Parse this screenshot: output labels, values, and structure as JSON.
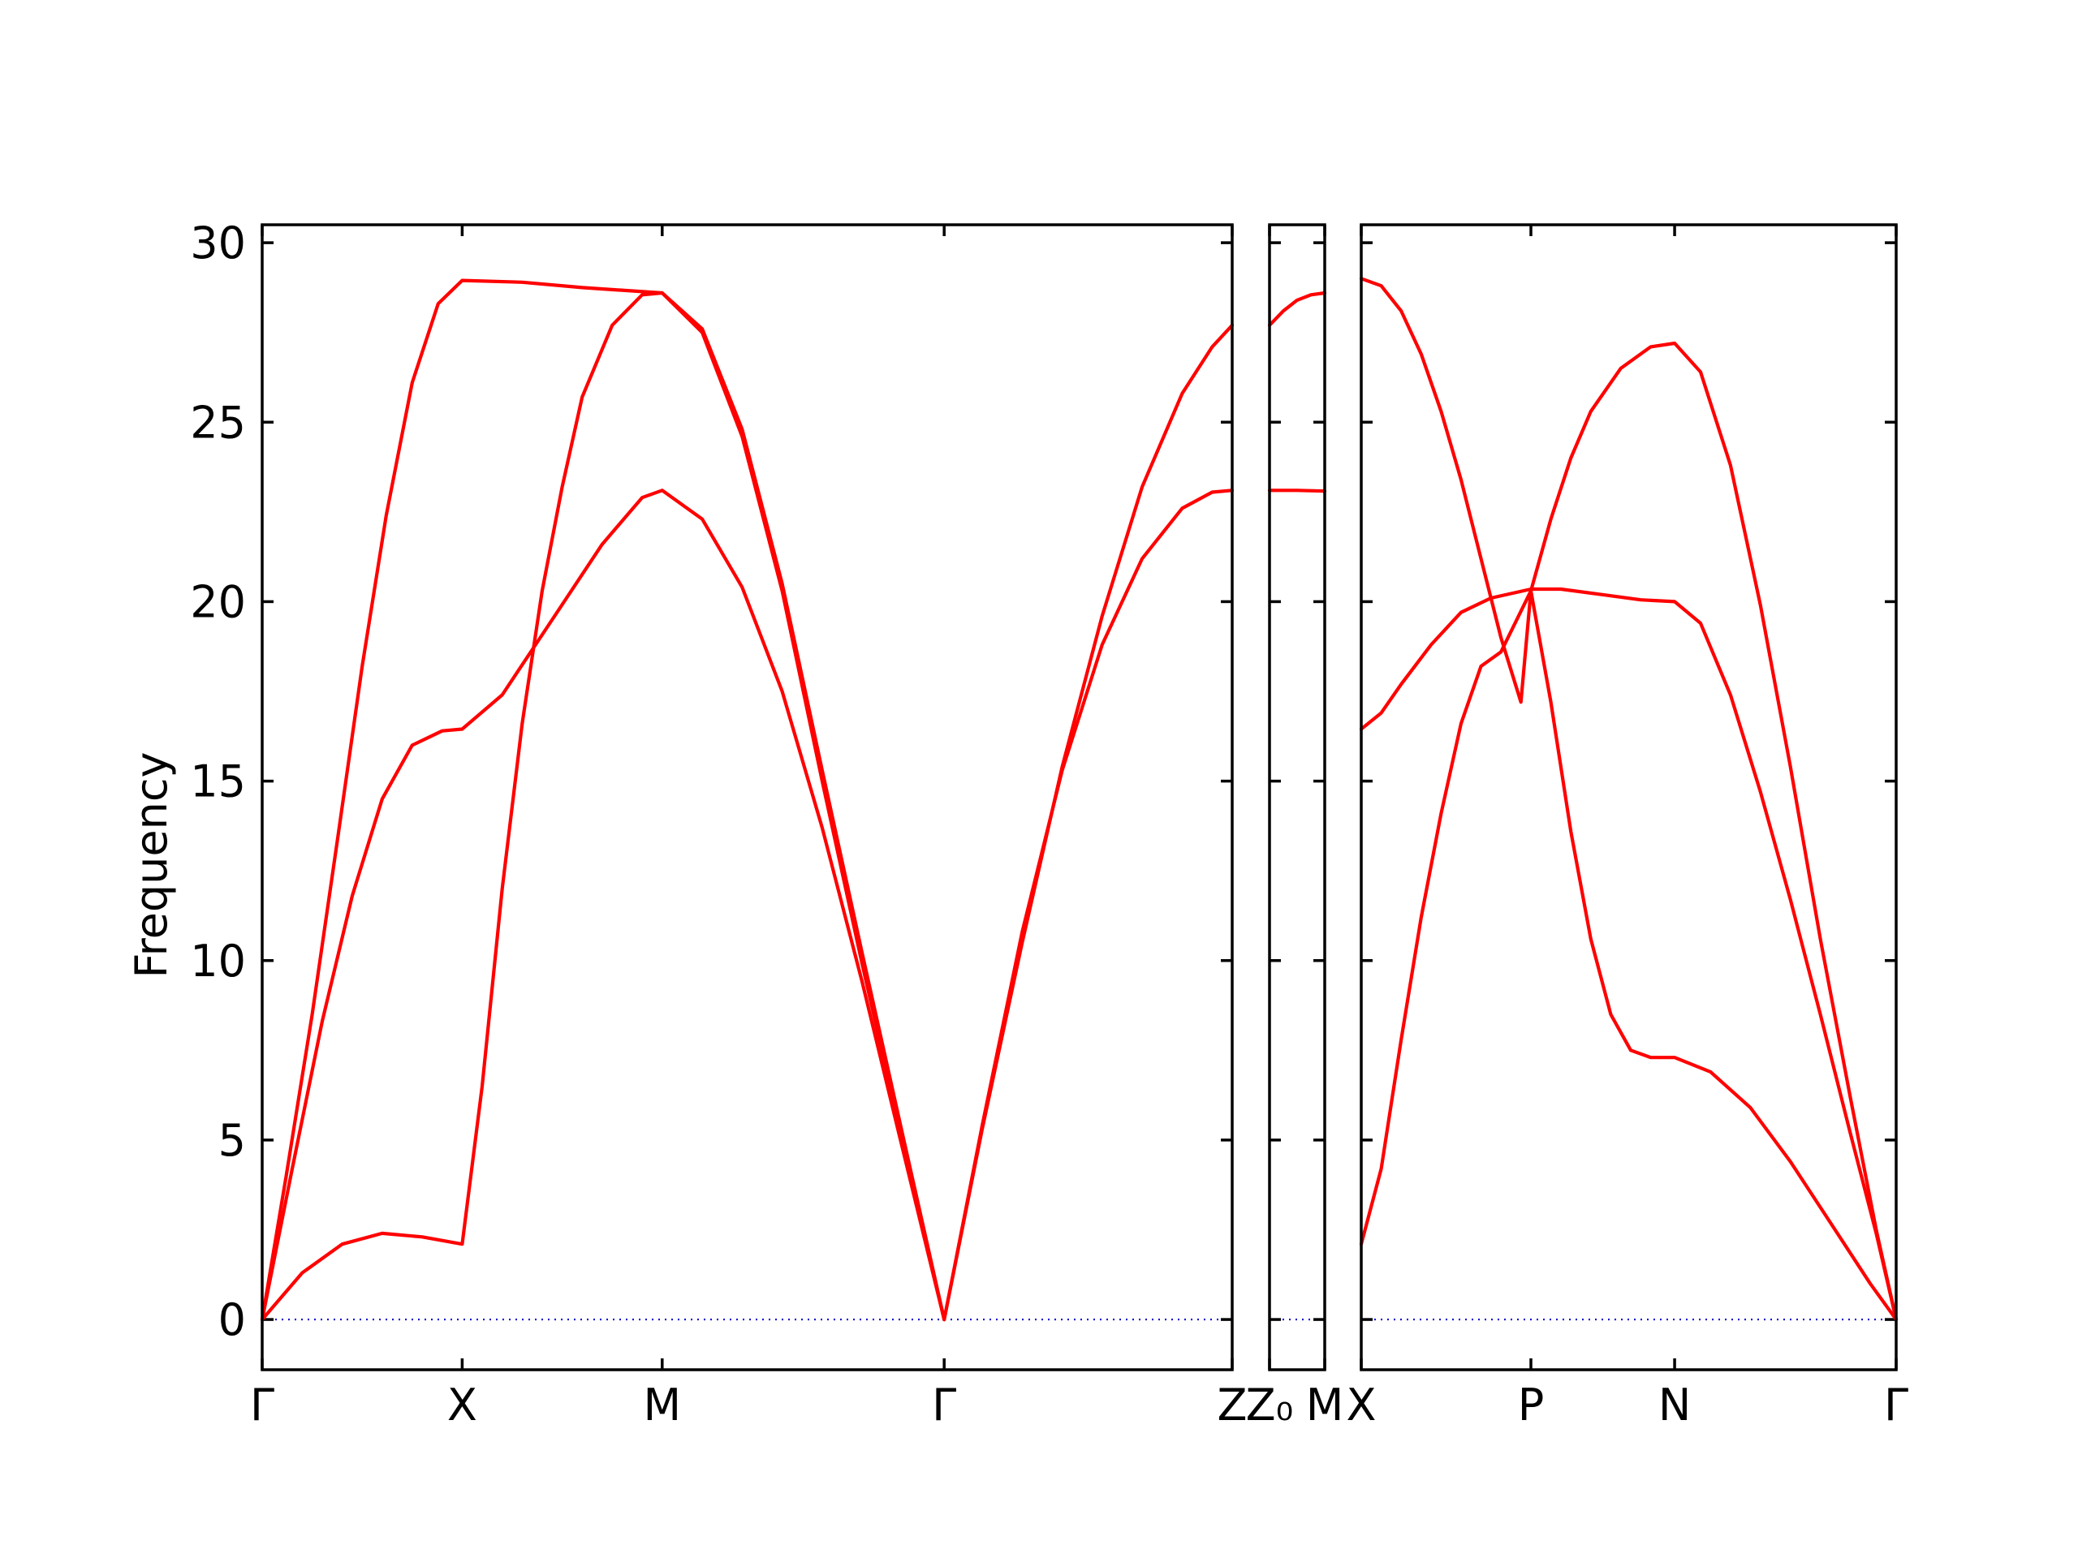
{
  "chart_data": {
    "type": "line",
    "ylabel": "Frequency",
    "ylim": [
      -1.4,
      30.5
    ],
    "yticks": [
      0,
      5,
      10,
      15,
      20,
      25,
      30
    ],
    "grid": false,
    "colors": {
      "band": "#ff0000",
      "zero_line": "#0000cc",
      "axes": "#000000"
    },
    "panels": [
      {
        "x_range": [
          0,
          4.85
        ],
        "ticks": [
          {
            "x": 0,
            "label": "Γ"
          },
          {
            "x": 1.0,
            "label": "X"
          },
          {
            "x": 2.0,
            "label": "M"
          },
          {
            "x": 3.41,
            "label": "Γ"
          },
          {
            "x": 4.85,
            "label": "Z"
          }
        ],
        "series": [
          {
            "points": [
              [
                0,
                0
              ],
              [
                0.12,
                4
              ],
              [
                0.25,
                8.5
              ],
              [
                0.38,
                13.5
              ],
              [
                0.5,
                18.2
              ],
              [
                0.62,
                22.4
              ],
              [
                0.75,
                26.1
              ],
              [
                0.88,
                28.3
              ],
              [
                1.0,
                28.95
              ],
              [
                1.3,
                28.9
              ],
              [
                1.6,
                28.75
              ],
              [
                2.0,
                28.6
              ],
              [
                2.2,
                27.6
              ],
              [
                2.4,
                24.8
              ],
              [
                2.6,
                20.5
              ],
              [
                2.8,
                15.3
              ],
              [
                3.0,
                10.2
              ],
              [
                3.2,
                5.2
              ],
              [
                3.41,
                0
              ]
            ]
          },
          {
            "points": [
              [
                0,
                0
              ],
              [
                0.15,
                4.2
              ],
              [
                0.3,
                8.3
              ],
              [
                0.45,
                11.8
              ],
              [
                0.6,
                14.5
              ],
              [
                0.75,
                16.0
              ],
              [
                0.9,
                16.4
              ],
              [
                1.0,
                16.45
              ],
              [
                1.2,
                17.4
              ],
              [
                1.45,
                19.5
              ],
              [
                1.7,
                21.6
              ],
              [
                1.9,
                22.9
              ],
              [
                2.0,
                23.1
              ],
              [
                2.2,
                22.3
              ],
              [
                2.4,
                20.4
              ],
              [
                2.6,
                17.5
              ],
              [
                2.8,
                13.7
              ],
              [
                3.0,
                9.4
              ],
              [
                3.2,
                4.8
              ],
              [
                3.41,
                0
              ]
            ]
          },
          {
            "points": [
              [
                0,
                0
              ],
              [
                0.2,
                1.3
              ],
              [
                0.4,
                2.1
              ],
              [
                0.6,
                2.4
              ],
              [
                0.8,
                2.3
              ],
              [
                1.0,
                2.1
              ],
              [
                1.1,
                6.5
              ],
              [
                1.2,
                12.0
              ],
              [
                1.3,
                16.6
              ],
              [
                1.4,
                20.3
              ],
              [
                1.5,
                23.2
              ],
              [
                1.6,
                25.7
              ],
              [
                1.75,
                27.7
              ],
              [
                1.9,
                28.55
              ],
              [
                2.0,
                28.6
              ],
              [
                2.2,
                27.5
              ],
              [
                2.4,
                24.6
              ],
              [
                2.6,
                20.3
              ],
              [
                2.8,
                15.0
              ],
              [
                3.0,
                9.9
              ],
              [
                3.2,
                5.0
              ],
              [
                3.41,
                0
              ]
            ]
          },
          {
            "points": [
              [
                3.41,
                0
              ],
              [
                3.6,
                5.4
              ],
              [
                3.8,
                10.8
              ],
              [
                4.0,
                15.3
              ],
              [
                4.2,
                18.8
              ],
              [
                4.4,
                21.2
              ],
              [
                4.6,
                22.6
              ],
              [
                4.75,
                23.05
              ],
              [
                4.85,
                23.1
              ]
            ]
          },
          {
            "points": [
              [
                3.41,
                0
              ],
              [
                3.6,
                5.3
              ],
              [
                3.8,
                10.5
              ],
              [
                4.0,
                15.4
              ],
              [
                4.2,
                19.6
              ],
              [
                4.4,
                23.2
              ],
              [
                4.6,
                25.8
              ],
              [
                4.75,
                27.1
              ],
              [
                4.85,
                27.7
              ]
            ]
          }
        ]
      },
      {
        "x_range": [
          0,
          0.28
        ],
        "ticks": [
          {
            "x": 0,
            "label": "Z₀"
          },
          {
            "x": 0.28,
            "label": "M"
          }
        ],
        "series": [
          {
            "points": [
              [
                0,
                27.7
              ],
              [
                0.07,
                28.1
              ],
              [
                0.14,
                28.4
              ],
              [
                0.21,
                28.55
              ],
              [
                0.28,
                28.6
              ]
            ]
          },
          {
            "points": [
              [
                0,
                23.1
              ],
              [
                0.14,
                23.1
              ],
              [
                0.28,
                23.08
              ]
            ]
          }
        ]
      },
      {
        "x_range": [
          0,
          2.68
        ],
        "ticks": [
          {
            "x": 0,
            "label": "X"
          },
          {
            "x": 0.85,
            "label": "P"
          },
          {
            "x": 1.57,
            "label": "N"
          },
          {
            "x": 2.68,
            "label": "Γ"
          }
        ],
        "series": [
          {
            "points": [
              [
                0,
                29.0
              ],
              [
                0.1,
                28.8
              ],
              [
                0.2,
                28.1
              ],
              [
                0.3,
                26.9
              ],
              [
                0.4,
                25.3
              ],
              [
                0.5,
                23.4
              ],
              [
                0.6,
                21.2
              ],
              [
                0.7,
                19.0
              ],
              [
                0.8,
                17.2
              ],
              [
                0.85,
                20.3
              ],
              [
                0.95,
                17.2
              ],
              [
                1.05,
                13.6
              ],
              [
                1.15,
                10.6
              ],
              [
                1.25,
                8.5
              ],
              [
                1.35,
                7.5
              ],
              [
                1.45,
                7.3
              ],
              [
                1.57,
                7.3
              ],
              [
                1.75,
                6.9
              ],
              [
                1.95,
                5.9
              ],
              [
                2.15,
                4.4
              ],
              [
                2.35,
                2.7
              ],
              [
                2.55,
                1.0
              ],
              [
                2.68,
                0
              ]
            ]
          },
          {
            "points": [
              [
                0,
                16.45
              ],
              [
                0.1,
                16.9
              ],
              [
                0.2,
                17.7
              ],
              [
                0.35,
                18.8
              ],
              [
                0.5,
                19.7
              ],
              [
                0.65,
                20.1
              ],
              [
                0.85,
                20.35
              ],
              [
                1.0,
                20.35
              ],
              [
                1.2,
                20.2
              ],
              [
                1.4,
                20.05
              ],
              [
                1.57,
                20.0
              ],
              [
                1.7,
                19.4
              ],
              [
                1.85,
                17.4
              ],
              [
                2.0,
                14.7
              ],
              [
                2.15,
                11.7
              ],
              [
                2.3,
                8.5
              ],
              [
                2.45,
                5.2
              ],
              [
                2.58,
                2.4
              ],
              [
                2.68,
                0
              ]
            ]
          },
          {
            "points": [
              [
                0,
                2.1
              ],
              [
                0.1,
                4.2
              ],
              [
                0.2,
                7.8
              ],
              [
                0.3,
                11.2
              ],
              [
                0.4,
                14.1
              ],
              [
                0.5,
                16.6
              ],
              [
                0.6,
                18.2
              ],
              [
                0.7,
                18.6
              ],
              [
                0.85,
                20.3
              ],
              [
                0.95,
                22.3
              ],
              [
                1.05,
                24.0
              ],
              [
                1.15,
                25.3
              ],
              [
                1.3,
                26.5
              ],
              [
                1.45,
                27.1
              ],
              [
                1.57,
                27.2
              ],
              [
                1.7,
                26.4
              ],
              [
                1.85,
                23.8
              ],
              [
                2.0,
                19.9
              ],
              [
                2.15,
                15.4
              ],
              [
                2.3,
                10.6
              ],
              [
                2.45,
                6.2
              ],
              [
                2.58,
                2.5
              ],
              [
                2.68,
                0
              ]
            ]
          }
        ]
      }
    ]
  }
}
